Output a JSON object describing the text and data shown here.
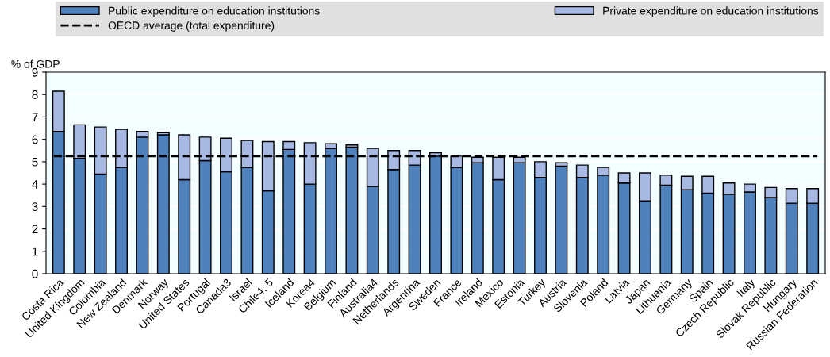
{
  "chart_data": {
    "type": "bar",
    "stacked": true,
    "ylabel": "% of GDP",
    "categories": [
      "Costa Rica",
      "United Kingdom",
      "Colombia",
      "New Zealand",
      "Denmark",
      "Norway",
      "United States",
      "Portugal",
      "Canada3",
      "Israel",
      "Chile4, 5",
      "Iceland",
      "Korea4",
      "Belgium",
      "Finland",
      "Australia4",
      "Netherlands",
      "Argentina",
      "Sweden",
      "France",
      "Ireland",
      "Mexico",
      "Estonia",
      "Turkey",
      "Austria",
      "Slovenia",
      "Poland",
      "Latvia",
      "Japan",
      "Lithuania",
      "Germany",
      "Spain",
      "Czech Republic",
      "Italy",
      "Slovak Republic",
      "Hungary",
      "Russian Federation"
    ],
    "series": [
      {
        "name": "Public expenditure on education institutions",
        "color": "#4f81bd",
        "values": [
          6.35,
          5.15,
          4.45,
          4.75,
          6.1,
          6.2,
          4.2,
          5.05,
          4.55,
          4.75,
          3.7,
          5.55,
          4.0,
          5.6,
          5.65,
          3.9,
          4.65,
          4.85,
          5.25,
          4.75,
          4.95,
          4.2,
          4.95,
          4.3,
          4.8,
          4.3,
          4.4,
          4.05,
          3.25,
          3.95,
          3.75,
          3.6,
          3.55,
          3.65,
          3.4,
          3.15,
          3.15
        ]
      },
      {
        "name": "Private expenditure on education institutions",
        "color": "#a7b8e3",
        "values": [
          1.8,
          1.5,
          2.1,
          1.7,
          0.25,
          0.1,
          2.0,
          1.05,
          1.5,
          1.2,
          2.2,
          0.35,
          1.85,
          0.2,
          0.1,
          1.7,
          0.85,
          0.65,
          0.15,
          0.5,
          0.25,
          1.0,
          0.25,
          0.7,
          0.15,
          0.55,
          0.35,
          0.45,
          1.25,
          0.45,
          0.6,
          0.75,
          0.5,
          0.35,
          0.45,
          0.65,
          0.65
        ]
      }
    ],
    "ref_lines": [
      {
        "axis": "y",
        "value": 5.25,
        "label": "OECD average (total expenditure)",
        "color": "#000000",
        "line_style": "dashed"
      }
    ],
    "ylim": [
      0,
      9
    ],
    "yticks": [
      0,
      1,
      2,
      3,
      4,
      5,
      6,
      7,
      8,
      9
    ],
    "grid": "y",
    "legend": "top"
  }
}
